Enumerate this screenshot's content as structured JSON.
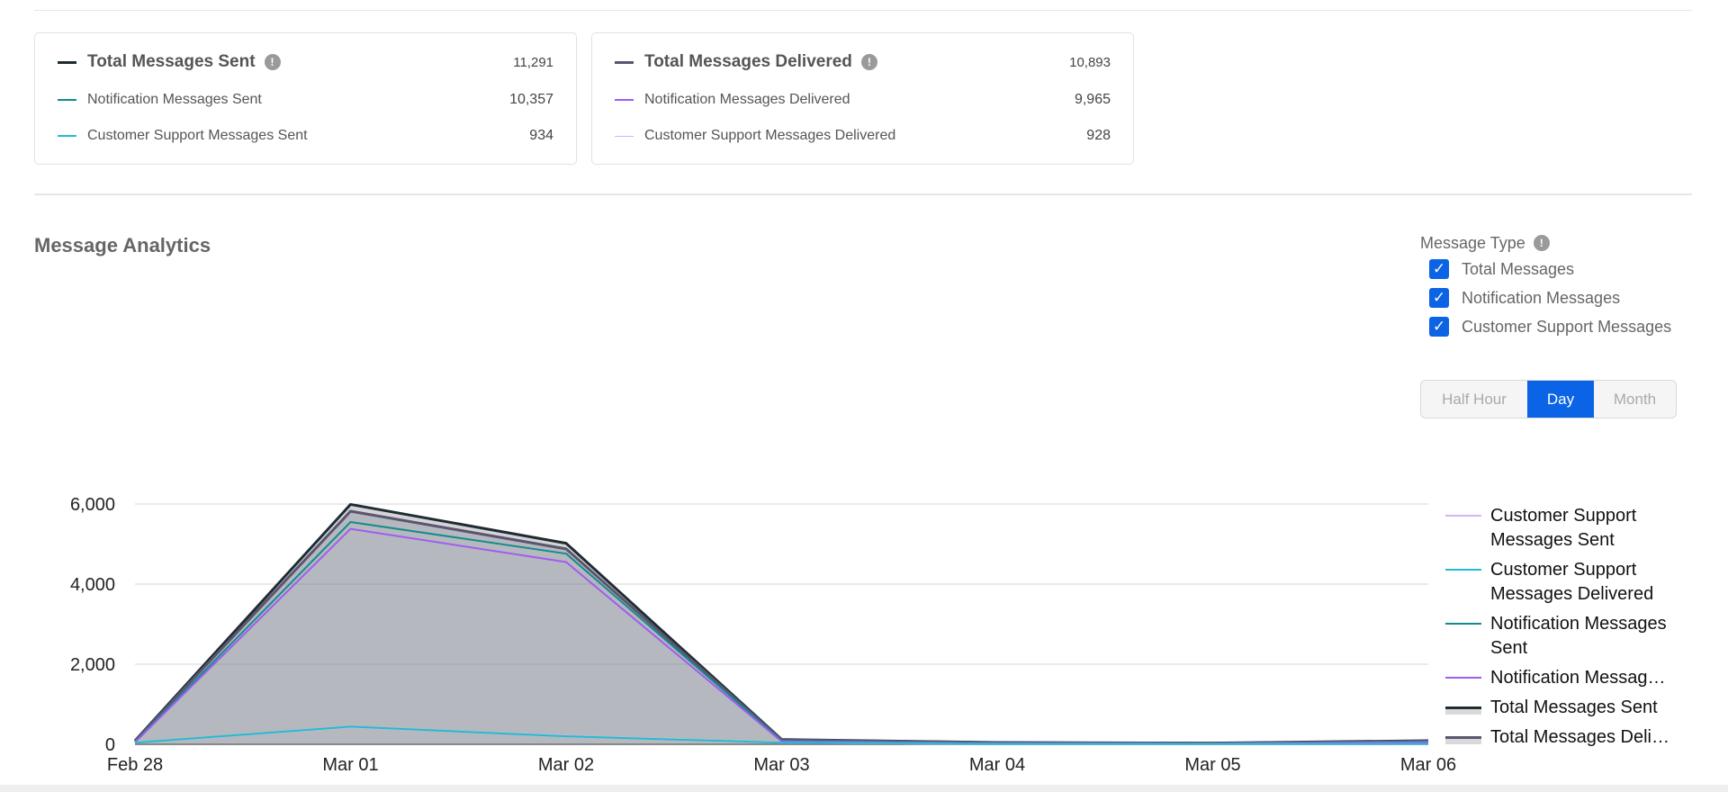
{
  "summary": {
    "sent": {
      "title": "Total Messages Sent",
      "total": "11,291",
      "color": "#1f2d33",
      "rows": [
        {
          "label": "Notification Messages Sent",
          "value": "10,357",
          "color": "#138b8b"
        },
        {
          "label": "Customer Support Messages Sent",
          "value": "934",
          "color": "#22bcd0"
        }
      ]
    },
    "delivered": {
      "title": "Total Messages Delivered",
      "total": "10,893",
      "color": "#5c5470",
      "rows": [
        {
          "label": "Notification Messages Delivered",
          "value": "9,965",
          "color": "#a05cf0"
        },
        {
          "label": "Customer Support Messages Delivered",
          "value": "928",
          "color": "#d3b4f5"
        }
      ]
    }
  },
  "section": {
    "title": "Message Analytics"
  },
  "filter": {
    "title": "Message Type",
    "options": [
      {
        "label": "Total Messages",
        "checked": true
      },
      {
        "label": "Notification Messages",
        "checked": true
      },
      {
        "label": "Customer Support Messages",
        "checked": true
      }
    ]
  },
  "granularity": {
    "options": [
      "Half Hour",
      "Day",
      "Month"
    ],
    "selected": "Day"
  },
  "chart_data": {
    "type": "area",
    "title": "Message Analytics",
    "categories": [
      "Feb 28",
      "Mar 01",
      "Mar 02",
      "Mar 03",
      "Mar 04",
      "Mar 05",
      "Mar 06"
    ],
    "ylim": [
      0,
      6000
    ],
    "yticks": [
      0,
      2000,
      4000,
      6000
    ],
    "ytick_labels": [
      "0",
      "2,000",
      "4,000",
      "6,000"
    ],
    "grid": true,
    "legend_position": "right",
    "series": [
      {
        "name": "Customer Support Messages Sent",
        "legend_label": "Customer Support Messages Sent",
        "color": "#d3b4f5",
        "width": 2,
        "values": [
          40,
          430,
          210,
          40,
          5,
          5,
          10
        ]
      },
      {
        "name": "Customer Support Messages Delivered",
        "legend_label": "Customer Support Messages Delivered",
        "color": "#22bcd0",
        "width": 2,
        "values": [
          40,
          440,
          200,
          40,
          5,
          5,
          10
        ]
      },
      {
        "name": "Notification Messages Sent",
        "legend_label": "Notification Messages Sent",
        "color": "#138b8b",
        "width": 2,
        "values": [
          60,
          5550,
          4760,
          90,
          30,
          20,
          70
        ]
      },
      {
        "name": "Notification Messages Delivered",
        "legend_label": "Notification Messag…",
        "color": "#a05cf0",
        "width": 2,
        "values": [
          50,
          5380,
          4550,
          70,
          20,
          15,
          50
        ]
      },
      {
        "name": "Total Messages Sent",
        "legend_label": "Total Messages Sent",
        "color": "#1f2d33",
        "width": 3,
        "area": true,
        "values": [
          90,
          5990,
          5020,
          120,
          45,
          30,
          90
        ]
      },
      {
        "name": "Total Messages Delivered",
        "legend_label": "Total Messages Deli…",
        "color": "#5c5470",
        "width": 3,
        "area": true,
        "values": [
          80,
          5820,
          4880,
          110,
          40,
          25,
          80
        ]
      }
    ]
  }
}
